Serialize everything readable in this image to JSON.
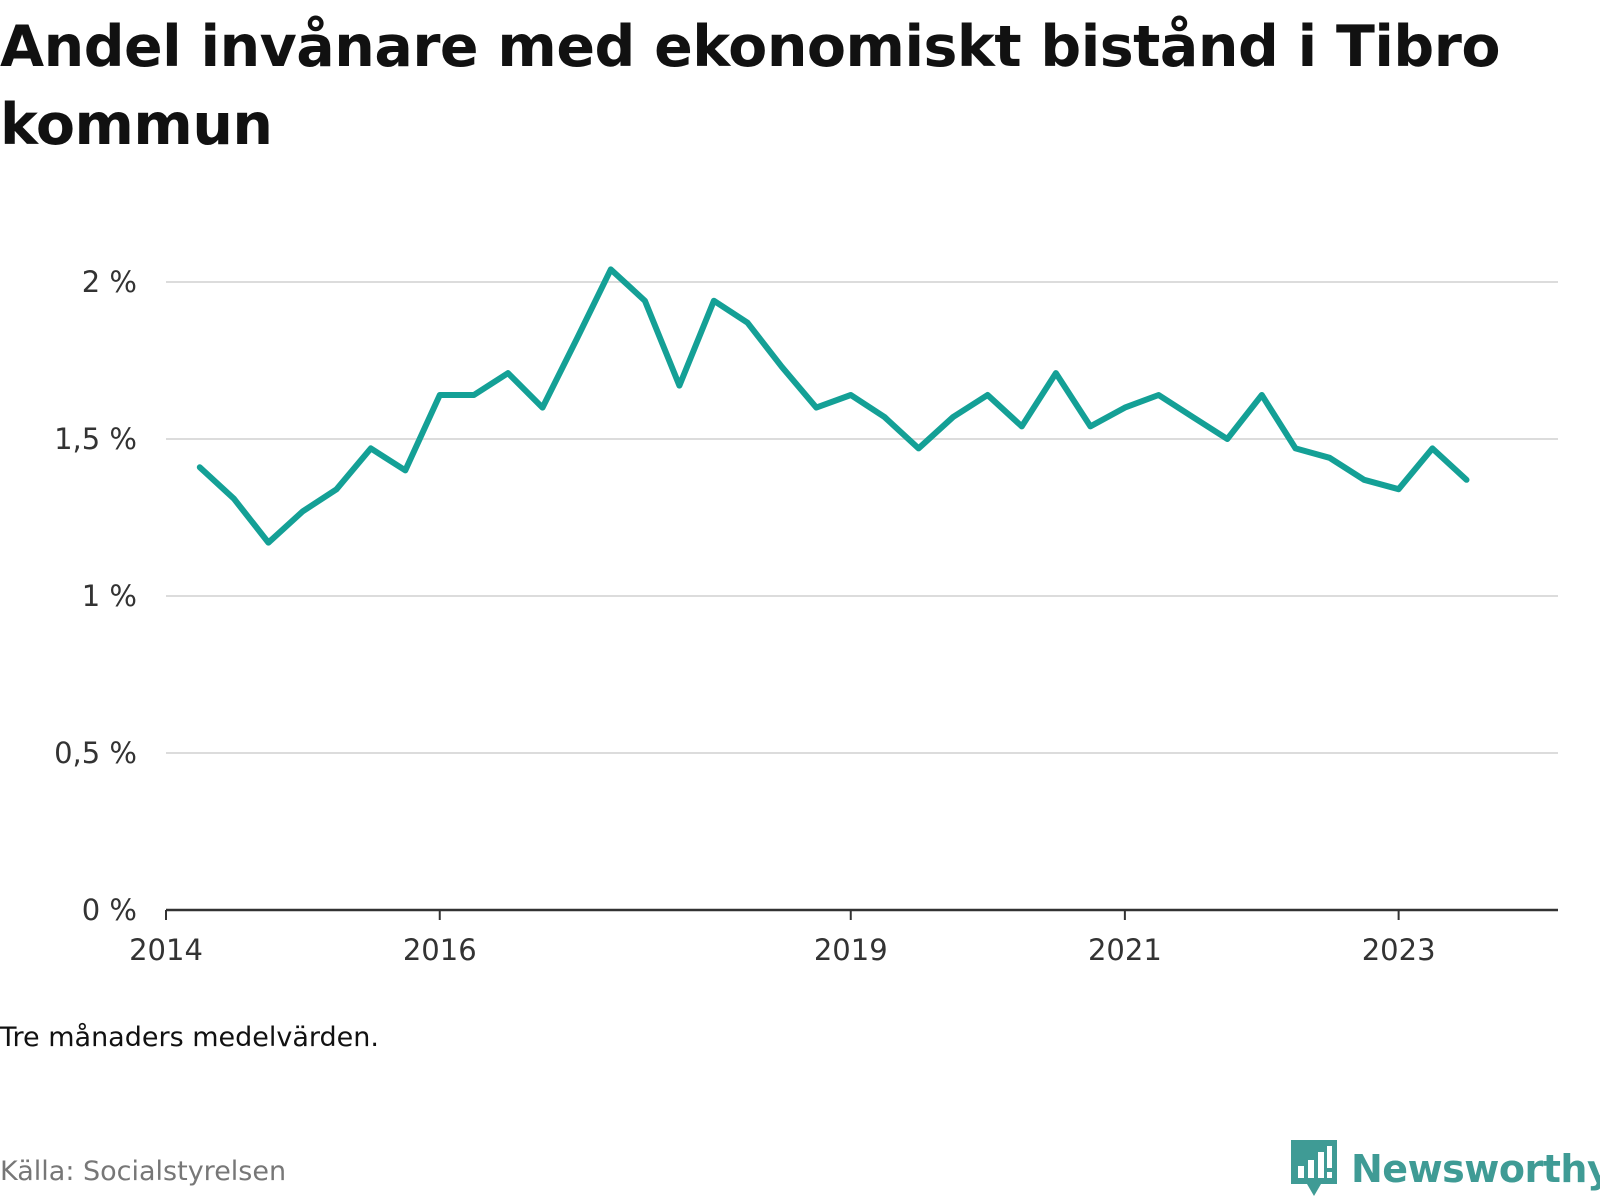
{
  "title": "Andel invånare med ekonomiskt bistånd i Tibro kommun",
  "note": "Tre månaders medelvärden.",
  "source": "Källa: Socialstyrelsen",
  "brand": {
    "name": "Newsworthy",
    "icon": "newsworthy-logo-icon",
    "color": "#3f9b95"
  },
  "chart_data": {
    "type": "line",
    "title": "Andel invånare med ekonomiskt bistånd i Tibro kommun",
    "xlabel": "",
    "ylabel": "",
    "line_color": "#14a096",
    "grid": true,
    "xlim": [
      "2014-01-01",
      "2024-03-01"
    ],
    "ylim": [
      0,
      2.0
    ],
    "y_ticks": [
      0,
      0.5,
      1,
      1.5,
      2
    ],
    "y_tick_labels": [
      "0 %",
      "0,5 %",
      "1 %",
      "1,5 %",
      "2 %"
    ],
    "x_ticks": [
      "2014-01-01",
      "2016-01-01",
      "2019-01-01",
      "2021-01-01",
      "2023-01-01"
    ],
    "x_tick_labels": [
      "2014",
      "2016",
      "2019",
      "2021",
      "2023"
    ],
    "series": [
      {
        "x": [
          "2014-04-01",
          "2014-07-01",
          "2014-10-01",
          "2015-01-01",
          "2015-04-01",
          "2015-07-01",
          "2015-10-01",
          "2016-01-01",
          "2016-04-01",
          "2016-07-01",
          "2016-10-01",
          "2017-01-01",
          "2017-04-01",
          "2017-07-01",
          "2017-10-01",
          "2018-01-01",
          "2018-04-01",
          "2018-07-01",
          "2018-10-01",
          "2019-01-01",
          "2019-04-01",
          "2019-07-01",
          "2019-10-01",
          "2020-01-01",
          "2020-04-01",
          "2020-07-01",
          "2020-10-01",
          "2021-01-01",
          "2021-04-01",
          "2021-07-01",
          "2021-10-01",
          "2022-01-01",
          "2022-04-01",
          "2022-07-01",
          "2022-10-01",
          "2023-01-01",
          "2023-04-01",
          "2023-07-01"
        ],
        "values": [
          1.41,
          1.31,
          1.17,
          1.27,
          1.34,
          1.47,
          1.4,
          1.64,
          1.64,
          1.71,
          1.6,
          1.82,
          2.04,
          1.94,
          1.67,
          1.94,
          1.87,
          1.73,
          1.6,
          1.64,
          1.57,
          1.47,
          1.57,
          1.64,
          1.54,
          1.71,
          1.54,
          1.6,
          1.64,
          1.57,
          1.5,
          1.64,
          1.47,
          1.44,
          1.37,
          1.34,
          1.47,
          1.37
        ]
      }
    ]
  }
}
